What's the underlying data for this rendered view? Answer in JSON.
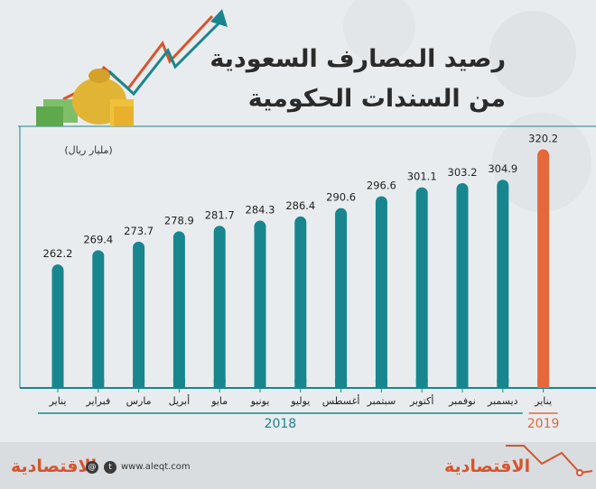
{
  "title_line1": "رصيد المصارف السعودية",
  "title_line2": "من السندات الحكومية",
  "unit": "(مليار ريال)",
  "website": "www.aleqt.com",
  "logo_text": "الاقتصادية",
  "colors": {
    "teal": "#17868f",
    "orange": "#e5683c",
    "axis": "#17868f"
  },
  "chart_data": {
    "type": "bar",
    "categories": [
      "يناير",
      "فبراير",
      "مارس",
      "أبريل",
      "مايو",
      "يونيو",
      "يوليو",
      "أغسطس",
      "سبتمبر",
      "أكتوبر",
      "نوفمبر",
      "ديسمبر",
      "يناير"
    ],
    "values": [
      262.2,
      269.4,
      273.7,
      278.9,
      281.7,
      284.3,
      286.4,
      290.6,
      296.6,
      301.1,
      303.2,
      304.9,
      320.2
    ],
    "labels": [
      "262.2",
      "269.4",
      "273.7",
      "278.9",
      "281.7",
      "284.3",
      "286.4",
      "290.6",
      "296.6",
      "301.1",
      "303.2",
      "304.9",
      "320.2"
    ],
    "years": [
      {
        "label": "2018",
        "count": 12,
        "color": "#17868f"
      },
      {
        "label": "2019",
        "count": 1,
        "color": "#e5683c"
      }
    ],
    "highlight_index": 12,
    "ylim": [
      200,
      325
    ],
    "title": "رصيد المصارف السعودية من السندات الحكومية",
    "ylabel": "(مليار ريال)",
    "xlabel": ""
  }
}
